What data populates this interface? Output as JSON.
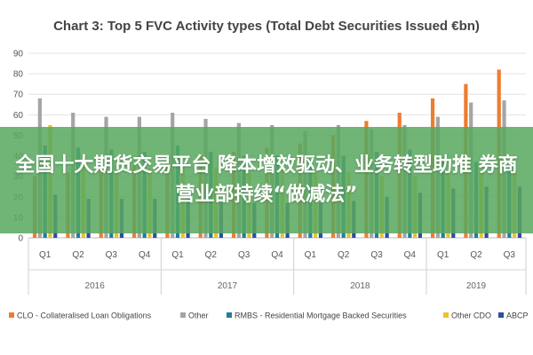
{
  "chart_data": {
    "type": "bar",
    "title": "Chart 3: Top 5 FVC Activity types (Total Debt Securities Issued €bn)",
    "ylim": [
      0,
      90
    ],
    "yticks": [
      0,
      10,
      20,
      30,
      40,
      50,
      60,
      70,
      80,
      90
    ],
    "grid": true,
    "legend_position": "bottom",
    "years": [
      {
        "label": "2016",
        "quarters": 4
      },
      {
        "label": "2017",
        "quarters": 4
      },
      {
        "label": "2018",
        "quarters": 4
      },
      {
        "label": "2019",
        "quarters": 3
      }
    ],
    "categories": [
      "Q1",
      "Q2",
      "Q3",
      "Q4",
      "Q1",
      "Q2",
      "Q3",
      "Q4",
      "Q1",
      "Q2",
      "Q3",
      "Q4",
      "Q1",
      "Q2",
      "Q3"
    ],
    "series": [
      {
        "name": "CLO - Collateralised Loan Obligations",
        "color": "#ed7d31",
        "values": [
          30,
          32,
          33,
          35,
          37,
          40,
          42,
          44,
          46,
          50,
          57,
          61,
          68,
          75,
          82
        ]
      },
      {
        "name": "Other",
        "color": "#a5a5a5",
        "values": [
          68,
          61,
          59,
          59,
          61,
          58,
          56,
          55,
          52,
          55,
          53,
          55,
          59,
          66,
          67
        ]
      },
      {
        "name": "RMBS - Residential Mortgage Backed Securities",
        "color": "#1f7f9a",
        "values": [
          45,
          44,
          43,
          42,
          45,
          42,
          40,
          40,
          38,
          40,
          42,
          43,
          38,
          37,
          35
        ]
      },
      {
        "name": "Other CDO",
        "color": "#e8c230",
        "values": [
          55,
          38,
          35,
          34,
          36,
          34,
          32,
          33,
          33,
          32,
          30,
          30,
          33,
          33,
          33
        ]
      },
      {
        "name": "ABCP",
        "color": "#2c4f9e",
        "values": [
          21,
          19,
          19,
          19,
          20,
          17,
          17,
          17,
          17,
          18,
          20,
          22,
          24,
          25,
          25
        ]
      }
    ]
  },
  "banner": {
    "text": "全国十大期货交易平台 降本增效驱动、业务转型助推 券商营业部持续“做减法”"
  }
}
